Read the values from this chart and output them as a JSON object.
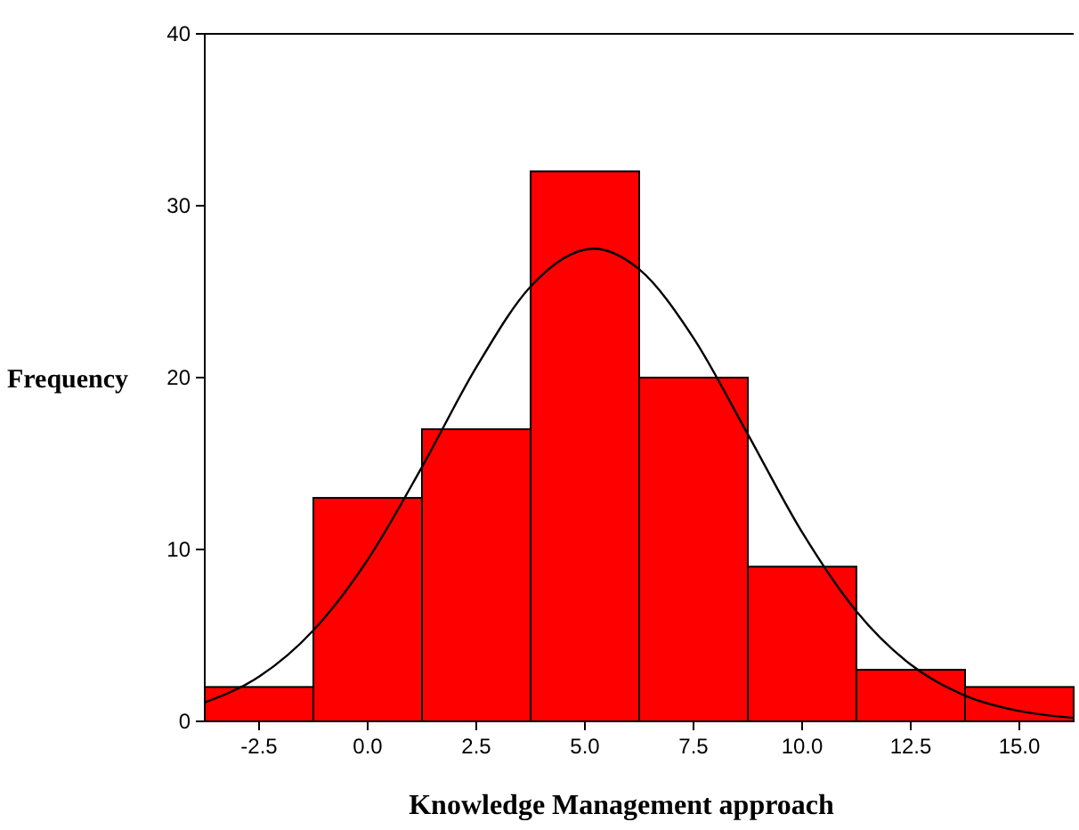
{
  "chart_data": {
    "type": "histogram",
    "xlabel": "Knowledge Management approach",
    "ylabel": "Frequency",
    "color": "#ff0000",
    "bins": [
      -3.75,
      -1.25,
      1.25,
      3.75,
      6.25,
      8.75,
      11.25,
      13.75,
      16.25
    ],
    "values": [
      2,
      13,
      17,
      32,
      20,
      9,
      3,
      2
    ],
    "xlim": [
      -3.75,
      16.25
    ],
    "ylim": [
      0,
      40
    ],
    "xticks": [
      {
        "value": -2.5,
        "label": "-2.5"
      },
      {
        "value": 0,
        "label": "0.0"
      },
      {
        "value": 2.5,
        "label": "2.5"
      },
      {
        "value": 5,
        "label": "5.0"
      },
      {
        "value": 7.5,
        "label": "7.5"
      },
      {
        "value": 10,
        "label": "10.0"
      },
      {
        "value": 12.5,
        "label": "12.5"
      },
      {
        "value": 15,
        "label": "15.0"
      }
    ],
    "yticks": [
      0,
      10,
      20,
      30,
      40
    ],
    "series": [
      {
        "type": "line",
        "color": "#000000",
        "x": [
          -3.75,
          -2.5,
          -1.25,
          0,
          1.25,
          2.5,
          3.75,
          5.2,
          6.25,
          7.5,
          8.75,
          10,
          11.25,
          12.5,
          13.75,
          15,
          16.25
        ],
        "values": [
          1.1,
          2.6,
          5.3,
          9.4,
          14.8,
          20.6,
          25.3,
          27.5,
          26.3,
          22.3,
          16.7,
          11,
          6.4,
          3.3,
          1.5,
          0.6,
          0.2
        ]
      }
    ],
    "grid": false
  }
}
